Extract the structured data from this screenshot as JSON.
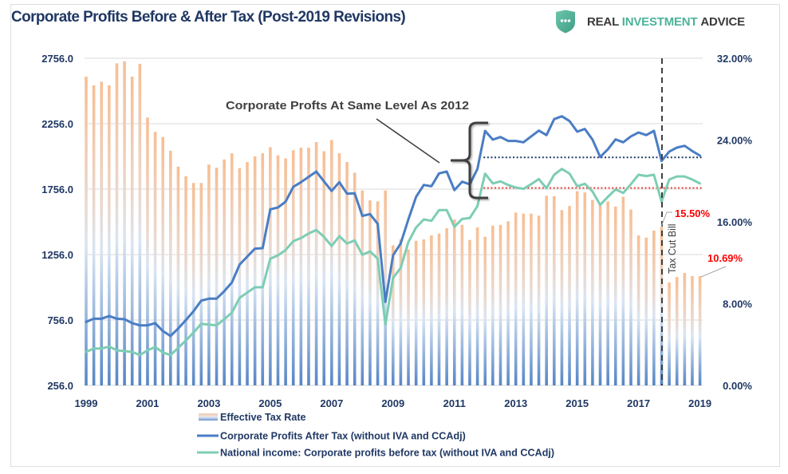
{
  "page": {
    "title": "Corporate Profits Before & After Tax (Post-2019 Revisions)"
  },
  "logo": {
    "icon": "shield-chat-icon",
    "word1": "REAL",
    "word2": "INVESTMENT",
    "word3": "ADVICE",
    "accent_color": "#4db399"
  },
  "chart_data": {
    "type": "bar",
    "title": "Corporate Profits Before & After Tax (Post-2019 Revisions)",
    "xlabel": "",
    "ylabel": "",
    "y2label": "",
    "grid": true,
    "legend_position": "bottom-center",
    "categories": [
      "1999Q1",
      "1999Q2",
      "1999Q3",
      "1999Q4",
      "2000Q1",
      "2000Q2",
      "2000Q3",
      "2000Q4",
      "2001Q1",
      "2001Q2",
      "2001Q3",
      "2001Q4",
      "2002Q1",
      "2002Q2",
      "2002Q3",
      "2002Q4",
      "2003Q1",
      "2003Q2",
      "2003Q3",
      "2003Q4",
      "2004Q1",
      "2004Q2",
      "2004Q3",
      "2004Q4",
      "2005Q1",
      "2005Q2",
      "2005Q3",
      "2005Q4",
      "2006Q1",
      "2006Q2",
      "2006Q3",
      "2006Q4",
      "2007Q1",
      "2007Q2",
      "2007Q3",
      "2007Q4",
      "2008Q1",
      "2008Q2",
      "2008Q3",
      "2008Q4",
      "2009Q1",
      "2009Q2",
      "2009Q3",
      "2009Q4",
      "2010Q1",
      "2010Q2",
      "2010Q3",
      "2010Q4",
      "2011Q1",
      "2011Q2",
      "2011Q3",
      "2011Q4",
      "2012Q1",
      "2012Q2",
      "2012Q3",
      "2012Q4",
      "2013Q1",
      "2013Q2",
      "2013Q3",
      "2013Q4",
      "2014Q1",
      "2014Q2",
      "2014Q3",
      "2014Q4",
      "2015Q1",
      "2015Q2",
      "2015Q3",
      "2015Q4",
      "2016Q1",
      "2016Q2",
      "2016Q3",
      "2016Q4",
      "2017Q1",
      "2017Q2",
      "2017Q3",
      "2017Q4",
      "2018Q1",
      "2018Q2",
      "2018Q3",
      "2018Q4",
      "2019Q1"
    ],
    "x_ticks": [
      {
        "label": "1999",
        "at": "1999Q1"
      },
      {
        "label": "2001",
        "at": "2001Q1"
      },
      {
        "label": "2003",
        "at": "2003Q1"
      },
      {
        "label": "2005",
        "at": "2005Q1"
      },
      {
        "label": "2007",
        "at": "2007Q1"
      },
      {
        "label": "2009",
        "at": "2009Q1"
      },
      {
        "label": "2011",
        "at": "2011Q1"
      },
      {
        "label": "2013",
        "at": "2013Q1"
      },
      {
        "label": "2015",
        "at": "2015Q1"
      },
      {
        "label": "2017",
        "at": "2017Q1"
      },
      {
        "label": "2019",
        "at": "2019Q1"
      }
    ],
    "y_left": {
      "range": [
        256,
        2756
      ],
      "ticks": [
        256,
        756,
        1256,
        1756,
        2256,
        2756
      ],
      "tick_labels": [
        "256.0",
        "756.0",
        "1256.0",
        "1756.0",
        "2256.0",
        "2756.0"
      ]
    },
    "y_right": {
      "range": [
        0,
        32
      ],
      "ticks": [
        0,
        8,
        16,
        24,
        32
      ],
      "tick_labels": [
        "0.00%",
        "8.00%",
        "16.00%",
        "24.00%",
        "32.00%"
      ]
    },
    "series": [
      {
        "name": "Effective Tax Rate",
        "type": "bar",
        "axis": "right",
        "unit": "%",
        "color_top": "#f8be93",
        "color_bottom": "#5686c6",
        "values": [
          30.2,
          29.35,
          29.7,
          29.35,
          31.5,
          31.7,
          30.2,
          31.45,
          26.2,
          24.8,
          24.3,
          22.95,
          21.4,
          20.45,
          19.8,
          19.8,
          21.6,
          21.3,
          22.1,
          22.7,
          21.25,
          21.85,
          22.4,
          22.7,
          23.3,
          22.5,
          22.2,
          23.0,
          23.25,
          23.25,
          23.8,
          22.9,
          24.0,
          22.7,
          21.85,
          20.8,
          19.07,
          18.1,
          18.0,
          19.07,
          13.7,
          14.3,
          13.3,
          14.15,
          14.28,
          14.67,
          14.85,
          15.37,
          16.23,
          15.71,
          14.23,
          15.45,
          14.54,
          15.63,
          15.7,
          16.05,
          16.9,
          16.8,
          16.8,
          16.6,
          18.55,
          18.5,
          17.15,
          17.55,
          19.0,
          18.87,
          18.15,
          17.6,
          18.0,
          17.5,
          18.45,
          17.2,
          14.67,
          14.46,
          15.14,
          15.5,
          10.07,
          10.6,
          11.0,
          10.69,
          10.69
        ]
      },
      {
        "name": "Corporate Profits After Tax (without IVA and CCAdj)",
        "type": "line",
        "axis": "left",
        "color": "#4a7dc4",
        "values": [
          742,
          766,
          766,
          786,
          766,
          762,
          732,
          715,
          715,
          732,
          671,
          634,
          691,
          756,
          823,
          904,
          919,
          919,
          976,
          1043,
          1179,
          1240,
          1301,
          1305,
          1602,
          1616,
          1660,
          1773,
          1809,
          1850,
          1890,
          1815,
          1742,
          1809,
          1721,
          1724,
          1551,
          1565,
          1490,
          894,
          1250,
          1341,
          1524,
          1697,
          1788,
          1778,
          1876,
          1890,
          1748,
          1813,
          1793,
          1910,
          2201,
          2134,
          2154,
          2124,
          2124,
          2114,
          2159,
          2203,
          2169,
          2291,
          2313,
          2276,
          2195,
          2216,
          2134,
          2002,
          2060,
          2136,
          2114,
          2159,
          2189,
          2169,
          2201,
          1971,
          2043,
          2073,
          2087,
          2047,
          2012
        ]
      },
      {
        "name": "National income: Corporate profits before tax (without IVA and CCAdj)",
        "type": "line",
        "axis": "left",
        "color": "#7dcdb3",
        "values": [
          512,
          538,
          538,
          553,
          524,
          518,
          512,
          488,
          524,
          549,
          508,
          488,
          544,
          599,
          660,
          727,
          721,
          715,
          762,
          813,
          925,
          965,
          1006,
          1006,
          1224,
          1250,
          1291,
          1358,
          1382,
          1417,
          1443,
          1392,
          1321,
          1396,
          1341,
          1364,
          1254,
          1280,
          1225,
          721,
          1077,
          1154,
          1352,
          1463,
          1524,
          1514,
          1596,
          1596,
          1468,
          1528,
          1535,
          1626,
          1874,
          1799,
          1815,
          1788,
          1768,
          1758,
          1794,
          1833,
          1763,
          1866,
          1910,
          1874,
          1778,
          1797,
          1738,
          1636,
          1697,
          1754,
          1727,
          1794,
          1866,
          1856,
          1866,
          1660,
          1829,
          1853,
          1853,
          1829,
          1799
        ]
      }
    ],
    "reference_lines": [
      {
        "name": "after-tax-2012-level",
        "axis": "left",
        "value": 1998,
        "from": "2012Q1",
        "to": "2019Q1",
        "style": "dotted",
        "color": "#1f3864"
      },
      {
        "name": "pre-tax-2012-level",
        "axis": "left",
        "value": 1765,
        "from": "2012Q1",
        "to": "2019Q1",
        "style": "dotted",
        "color": "#e8433c"
      }
    ],
    "event_line": {
      "label": "Tax Cut Bill",
      "at": "2017Q4",
      "style": "dashed",
      "color": "#404040"
    },
    "annotations": [
      {
        "text": "Corporate Profts At Same Level As 2012",
        "color": "#404040"
      },
      {
        "text": "15.50%",
        "at": "2017Q4",
        "series": "Effective Tax Rate",
        "color": "#ff0000"
      },
      {
        "text": "10.69%",
        "at": "2019Q1",
        "series": "Effective Tax Rate",
        "color": "#ff0000"
      }
    ]
  }
}
